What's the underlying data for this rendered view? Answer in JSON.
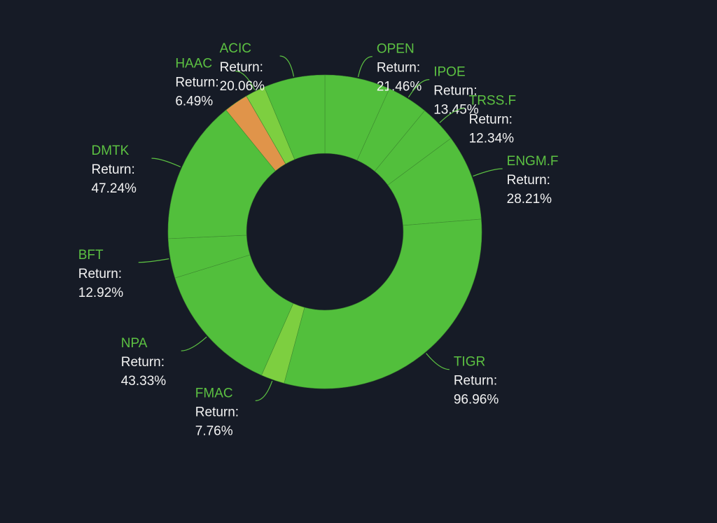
{
  "chart_data": {
    "type": "donut",
    "categories": [
      "OPEN",
      "IPOE",
      "TRSS.F",
      "ENGM.F",
      "TIGR",
      "FMAC",
      "NPA",
      "BFT",
      "DMTK",
      null,
      "HAAC",
      "ACIC"
    ],
    "values": [
      21.46,
      13.45,
      12.34,
      28.21,
      96.96,
      7.76,
      43.33,
      12.92,
      47.24,
      8,
      6.49,
      20.06
    ],
    "value_labels": [
      "21.46%",
      "13.45%",
      "12.34%",
      "28.21%",
      "96.96%",
      "7.76%",
      "43.33%",
      "12.92%",
      "47.24%",
      null,
      "6.49%",
      "20.06%"
    ],
    "colors": [
      "#52bf3c",
      "#52bf3c",
      "#52bf3c",
      "#52bf3c",
      "#52bf3c",
      "#7dcf40",
      "#52bf3c",
      "#52bf3c",
      "#52bf3c",
      "#e0944a",
      "#7dcf40",
      "#52bf3c"
    ],
    "value_prefix": "Return:"
  }
}
